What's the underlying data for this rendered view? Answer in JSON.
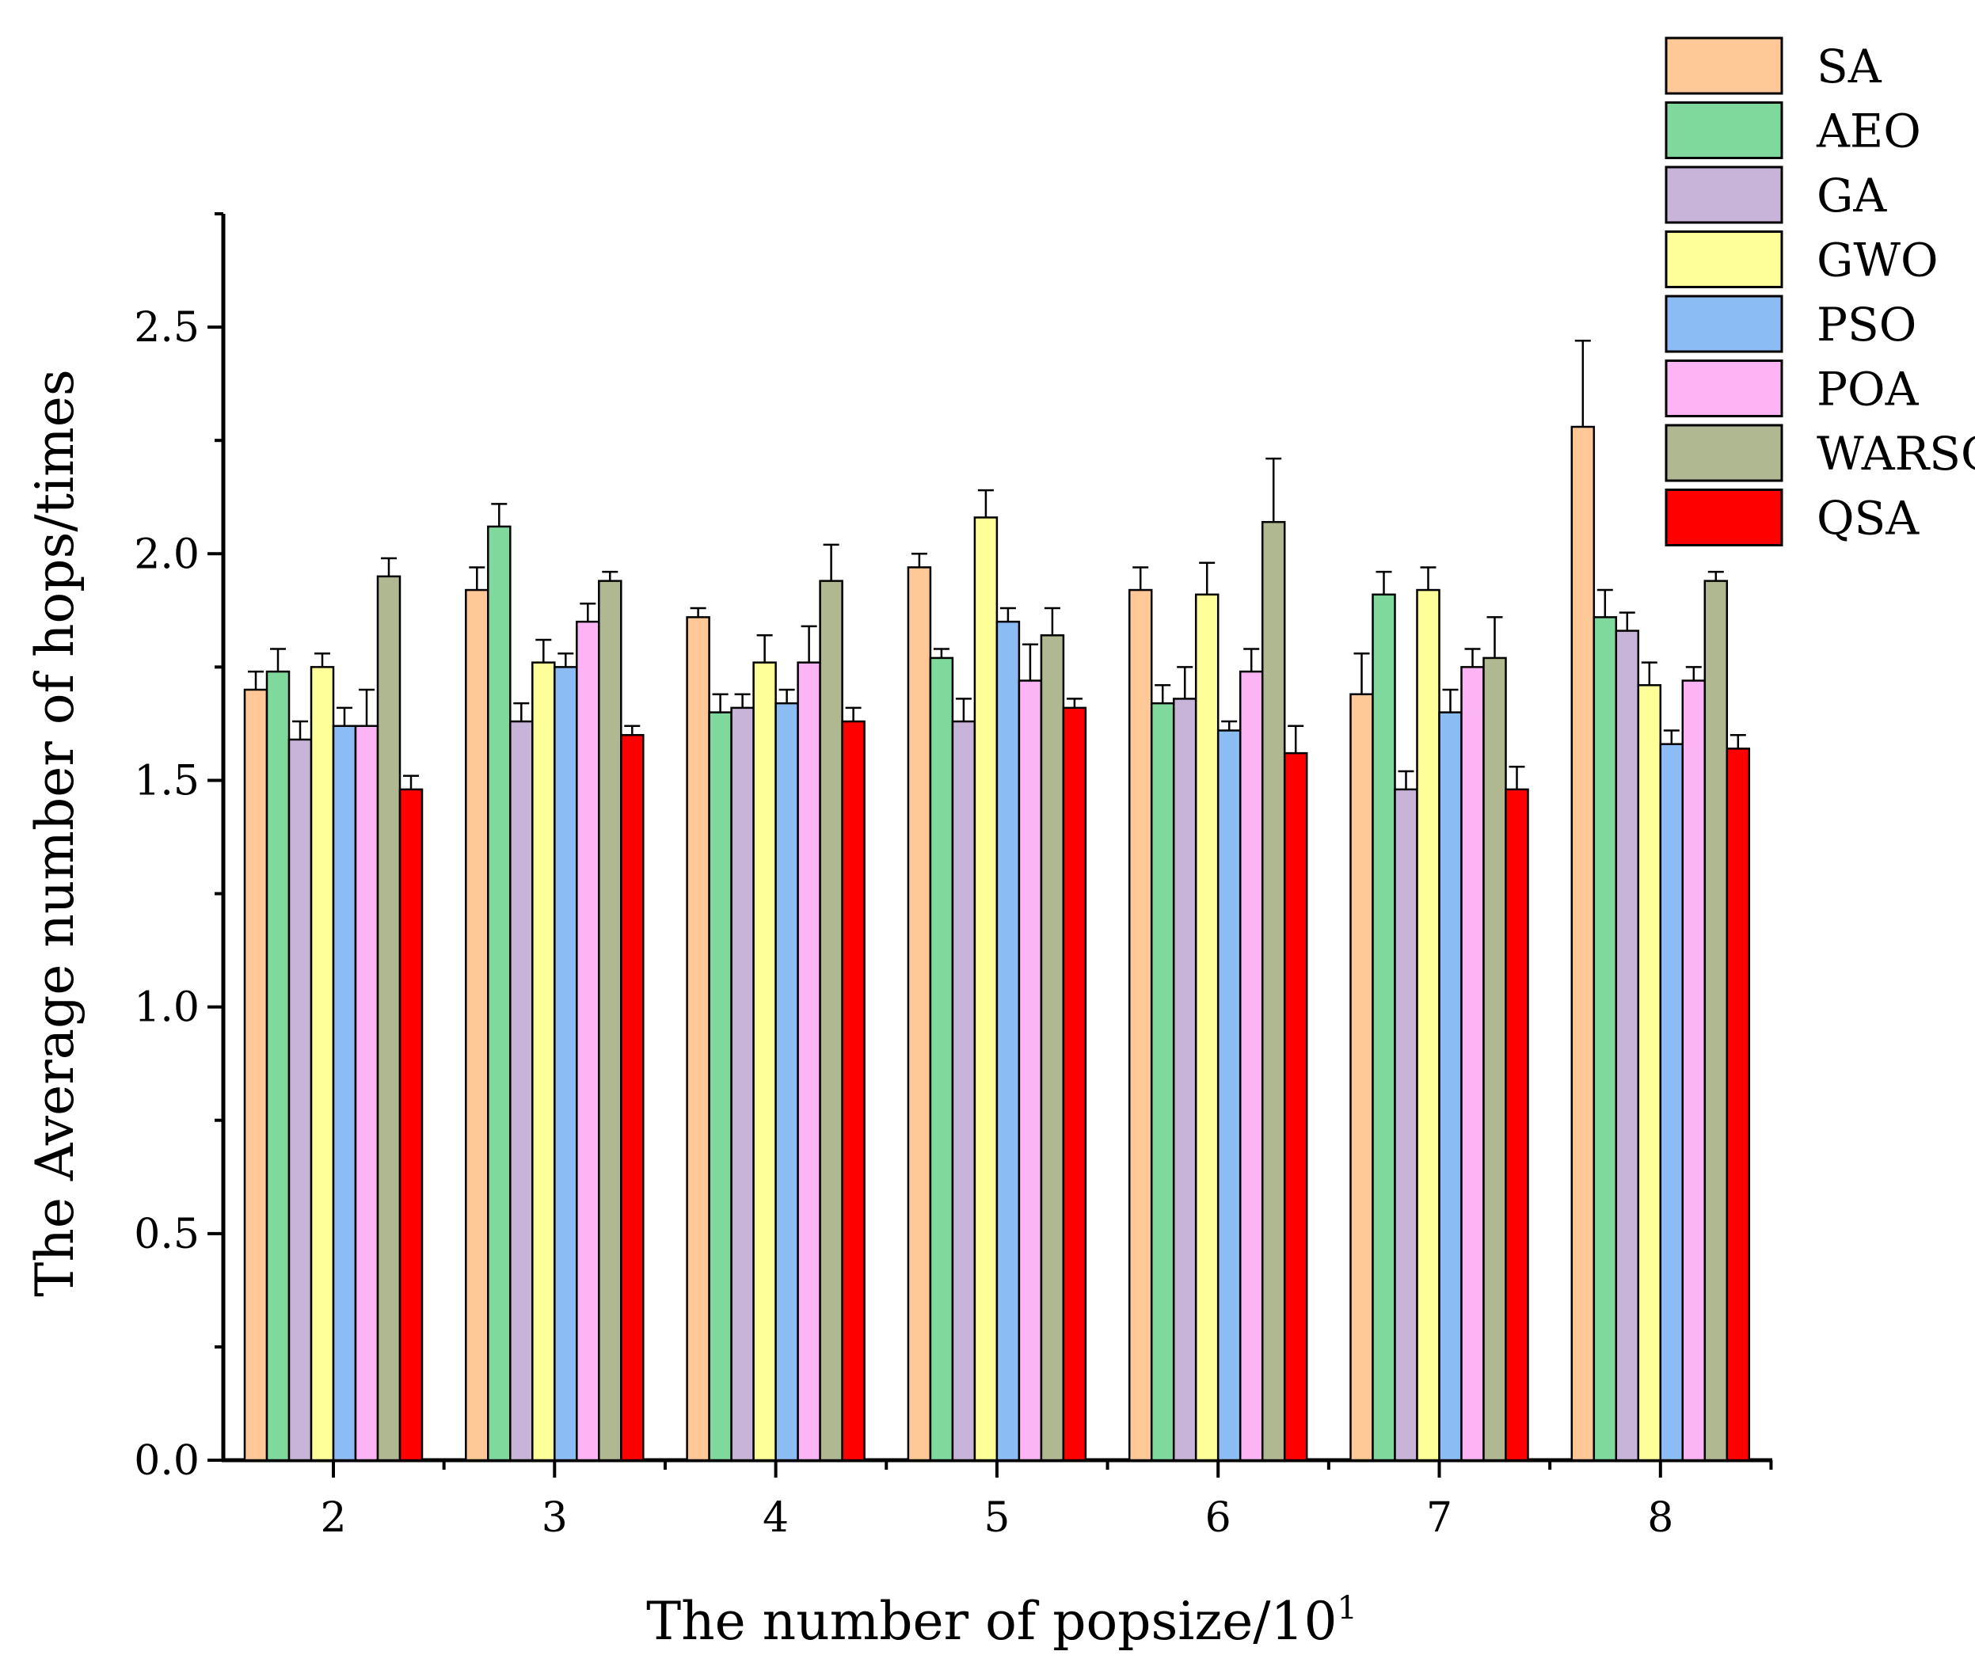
{
  "chart_data": {
    "type": "bar",
    "title": "",
    "xlabel": "The number of popsize/10",
    "xlabel_superscript": "1",
    "ylabel": "The Average number of hops/times",
    "ylim": [
      0,
      2.75
    ],
    "yticks": [
      0.0,
      0.5,
      1.0,
      1.5,
      2.0,
      2.5
    ],
    "ytick_labels": [
      "0.0",
      "0.5",
      "1.0",
      "1.5",
      "2.0",
      "2.5"
    ],
    "categories": [
      "2",
      "3",
      "4",
      "5",
      "6",
      "7",
      "8"
    ],
    "error_bars": "upper",
    "legend_position": "top-right",
    "series": [
      {
        "name": "SA",
        "color": "#FFC896",
        "values": [
          1.7,
          1.92,
          1.86,
          1.97,
          1.92,
          1.69,
          2.28
        ],
        "errors": [
          0.04,
          0.05,
          0.02,
          0.03,
          0.05,
          0.09,
          0.19
        ]
      },
      {
        "name": "AEO",
        "color": "#7FD89C",
        "values": [
          1.74,
          2.06,
          1.65,
          1.77,
          1.67,
          1.91,
          1.86
        ],
        "errors": [
          0.05,
          0.05,
          0.04,
          0.02,
          0.04,
          0.05,
          0.06
        ]
      },
      {
        "name": "GA",
        "color": "#C8B4D8",
        "values": [
          1.59,
          1.63,
          1.66,
          1.63,
          1.68,
          1.48,
          1.83
        ],
        "errors": [
          0.04,
          0.04,
          0.03,
          0.05,
          0.07,
          0.04,
          0.04
        ]
      },
      {
        "name": "GWO",
        "color": "#FFFF9A",
        "values": [
          1.75,
          1.76,
          1.76,
          2.08,
          1.91,
          1.92,
          1.71
        ],
        "errors": [
          0.03,
          0.05,
          0.06,
          0.06,
          0.07,
          0.05,
          0.05
        ]
      },
      {
        "name": "PSO",
        "color": "#8CBCF4",
        "values": [
          1.62,
          1.75,
          1.67,
          1.85,
          1.61,
          1.65,
          1.58
        ],
        "errors": [
          0.04,
          0.03,
          0.03,
          0.03,
          0.02,
          0.05,
          0.03
        ]
      },
      {
        "name": "POA",
        "color": "#FCB4F4",
        "values": [
          1.62,
          1.85,
          1.76,
          1.72,
          1.74,
          1.75,
          1.72
        ],
        "errors": [
          0.08,
          0.04,
          0.08,
          0.08,
          0.05,
          0.04,
          0.03
        ]
      },
      {
        "name": "WARSO",
        "color": "#AFB891",
        "values": [
          1.95,
          1.94,
          1.94,
          1.82,
          2.07,
          1.77,
          1.94
        ],
        "errors": [
          0.04,
          0.02,
          0.08,
          0.06,
          0.14,
          0.09,
          0.02
        ]
      },
      {
        "name": "QSA",
        "color": "#FF0000",
        "values": [
          1.48,
          1.6,
          1.63,
          1.66,
          1.56,
          1.48,
          1.57
        ],
        "errors": [
          0.03,
          0.02,
          0.03,
          0.02,
          0.06,
          0.05,
          0.03
        ]
      }
    ]
  }
}
